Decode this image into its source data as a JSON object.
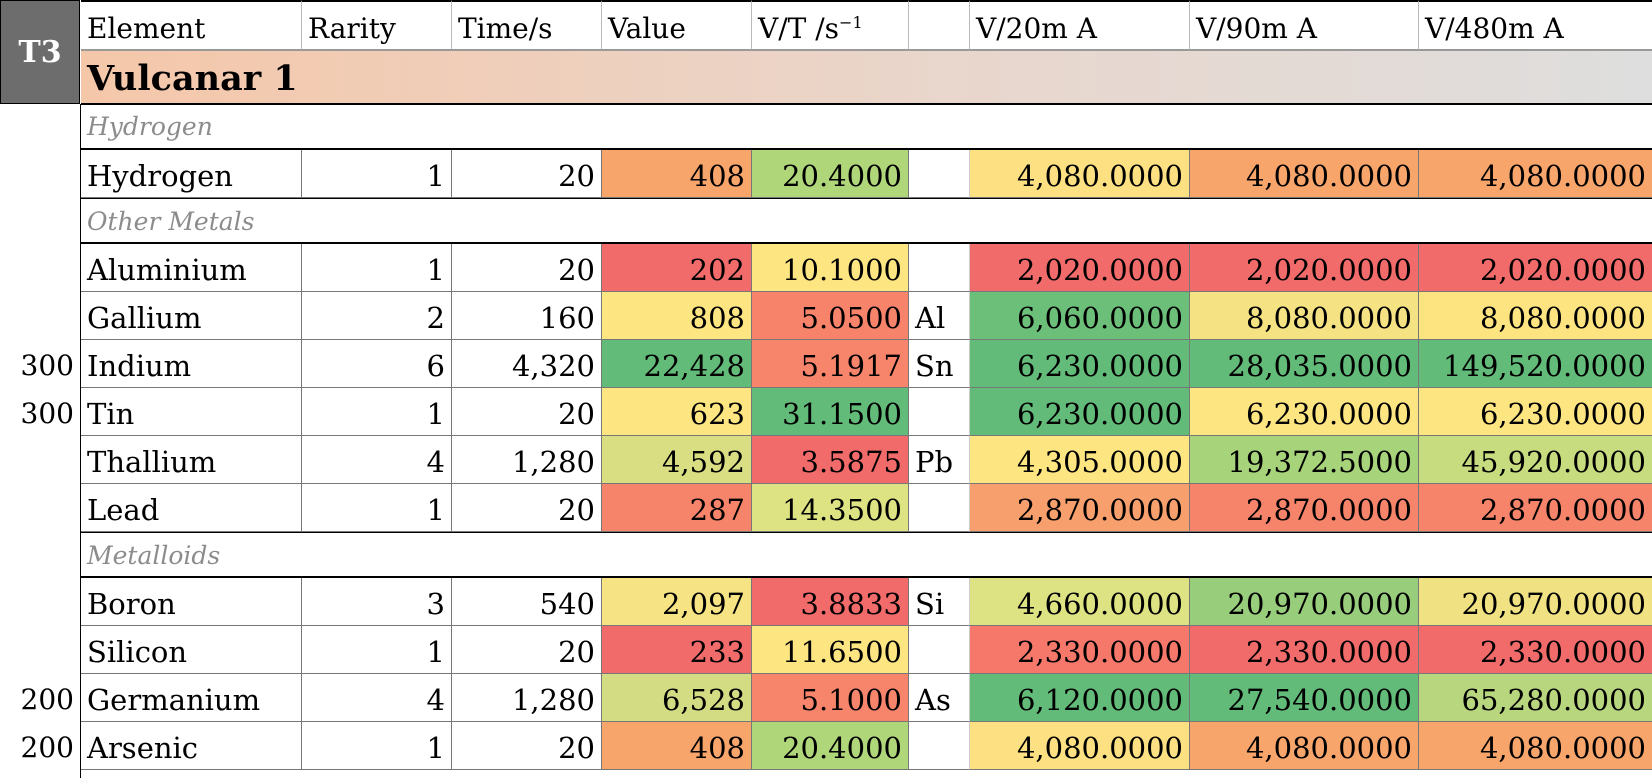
{
  "tier_label": "T3",
  "columns": [
    "Element",
    "Rarity",
    "Time/s",
    "Value",
    "V/T /s",
    "",
    "V/20m A",
    "V/90m A",
    "V/480m A"
  ],
  "vt_superscript": "−1",
  "title": "Vulcanar 1",
  "colors": {
    "header_box": "#6d6d6d",
    "title_gradient": [
      "#f5c7a9",
      "#dedede"
    ],
    "category_text": "#8c8c8c",
    "scale": [
      "#f26b6b",
      "#f7a56b",
      "#ffe57f",
      "#b0d67a",
      "#62bb78"
    ]
  },
  "groups": [
    {
      "category": "Hydrogen",
      "rows": [
        {
          "left": "",
          "element": "Hydrogen",
          "rarity": "1",
          "time": "20",
          "value": "408",
          "vt": "20.4000",
          "sym": "",
          "v20": "4,080.0000",
          "v90": "4,080.0000",
          "v480": "4,080.0000",
          "bg": {
            "value": "#f7a56b",
            "vt": "#b0d67a",
            "v20": "#fde081",
            "v90": "#f7a56b",
            "v480": "#f7a56b"
          }
        }
      ]
    },
    {
      "category": "Other Metals",
      "rows": [
        {
          "left": "",
          "element": "Aluminium",
          "rarity": "1",
          "time": "20",
          "value": "202",
          "vt": "10.1000",
          "sym": "",
          "v20": "2,020.0000",
          "v90": "2,020.0000",
          "v480": "2,020.0000",
          "bg": {
            "value": "#f26b6b",
            "vt": "#fde581",
            "v20": "#f26b6b",
            "v90": "#f26b6b",
            "v480": "#f26b6b"
          }
        },
        {
          "left": "",
          "element": "Gallium",
          "rarity": "2",
          "time": "160",
          "value": "808",
          "vt": "5.0500",
          "sym": "Al",
          "v20": "6,060.0000",
          "v90": "8,080.0000",
          "v480": "8,080.0000",
          "bg": {
            "value": "#fde581",
            "vt": "#f7836b",
            "v20": "#6cbf79",
            "v90": "#f4e283",
            "v480": "#fde481"
          }
        },
        {
          "left": "300",
          "element": "Indium",
          "rarity": "6",
          "time": "4,320",
          "value": "22,428",
          "vt": "5.1917",
          "sym": "Sn",
          "v20": "6,230.0000",
          "v90": "28,035.0000",
          "v480": "149,520.0000",
          "bg": {
            "value": "#62bb78",
            "vt": "#f7856b",
            "v20": "#62bb78",
            "v90": "#62bb78",
            "v480": "#62bb78"
          }
        },
        {
          "left": "300",
          "element": "Tin",
          "rarity": "1",
          "time": "20",
          "value": "623",
          "vt": "31.1500",
          "sym": "",
          "v20": "6,230.0000",
          "v90": "6,230.0000",
          "v480": "6,230.0000",
          "bg": {
            "value": "#fde581",
            "vt": "#62bb78",
            "v20": "#62bb78",
            "v90": "#fde581",
            "v480": "#fde581"
          }
        },
        {
          "left": "",
          "element": "Thallium",
          "rarity": "4",
          "time": "1,280",
          "value": "4,592",
          "vt": "3.5875",
          "sym": "Pb",
          "v20": "4,305.0000",
          "v90": "19,372.5000",
          "v480": "45,920.0000",
          "bg": {
            "value": "#d9de82",
            "vt": "#f26b6b",
            "v20": "#fde581",
            "v90": "#a7d47b",
            "v480": "#c6dc7f"
          }
        },
        {
          "left": "",
          "element": "Lead",
          "rarity": "1",
          "time": "20",
          "value": "287",
          "vt": "14.3500",
          "sym": "",
          "v20": "2,870.0000",
          "v90": "2,870.0000",
          "v480": "2,870.0000",
          "bg": {
            "value": "#f5846b",
            "vt": "#dde282",
            "v20": "#f8a06d",
            "v90": "#f5846b",
            "v480": "#f5846b"
          }
        }
      ]
    },
    {
      "category": "Metalloids",
      "rows": [
        {
          "left": "",
          "element": "Boron",
          "rarity": "3",
          "time": "540",
          "value": "2,097",
          "vt": "3.8833",
          "sym": "Si",
          "v20": "4,660.0000",
          "v90": "20,970.0000",
          "v480": "20,970.0000",
          "bg": {
            "value": "#f6e383",
            "vt": "#f26b6b",
            "v20": "#dde282",
            "v90": "#98cd7b",
            "v480": "#f0e282"
          }
        },
        {
          "left": "",
          "element": "Silicon",
          "rarity": "1",
          "time": "20",
          "value": "233",
          "vt": "11.6500",
          "sym": "",
          "v20": "2,330.0000",
          "v90": "2,330.0000",
          "v480": "2,330.0000",
          "bg": {
            "value": "#f26b6b",
            "vt": "#fde581",
            "v20": "#f5786b",
            "v90": "#f26b6b",
            "v480": "#f26b6b"
          }
        },
        {
          "left": "200",
          "element": "Germanium",
          "rarity": "4",
          "time": "1,280",
          "value": "6,528",
          "vt": "5.1000",
          "sym": "As",
          "v20": "6,120.0000",
          "v90": "27,540.0000",
          "v480": "65,280.0000",
          "bg": {
            "value": "#d3dc82",
            "vt": "#f7856b",
            "v20": "#62bb78",
            "v90": "#62bb78",
            "v480": "#b8d67e"
          }
        },
        {
          "left": "200",
          "element": "Arsenic",
          "rarity": "1",
          "time": "20",
          "value": "408",
          "vt": "20.4000",
          "sym": "",
          "v20": "4,080.0000",
          "v90": "4,080.0000",
          "v480": "4,080.0000",
          "bg": {
            "value": "#f7a56b",
            "vt": "#b0d67a",
            "v20": "#fde081",
            "v90": "#f7a56b",
            "v480": "#f7a56b"
          }
        }
      ]
    }
  ]
}
